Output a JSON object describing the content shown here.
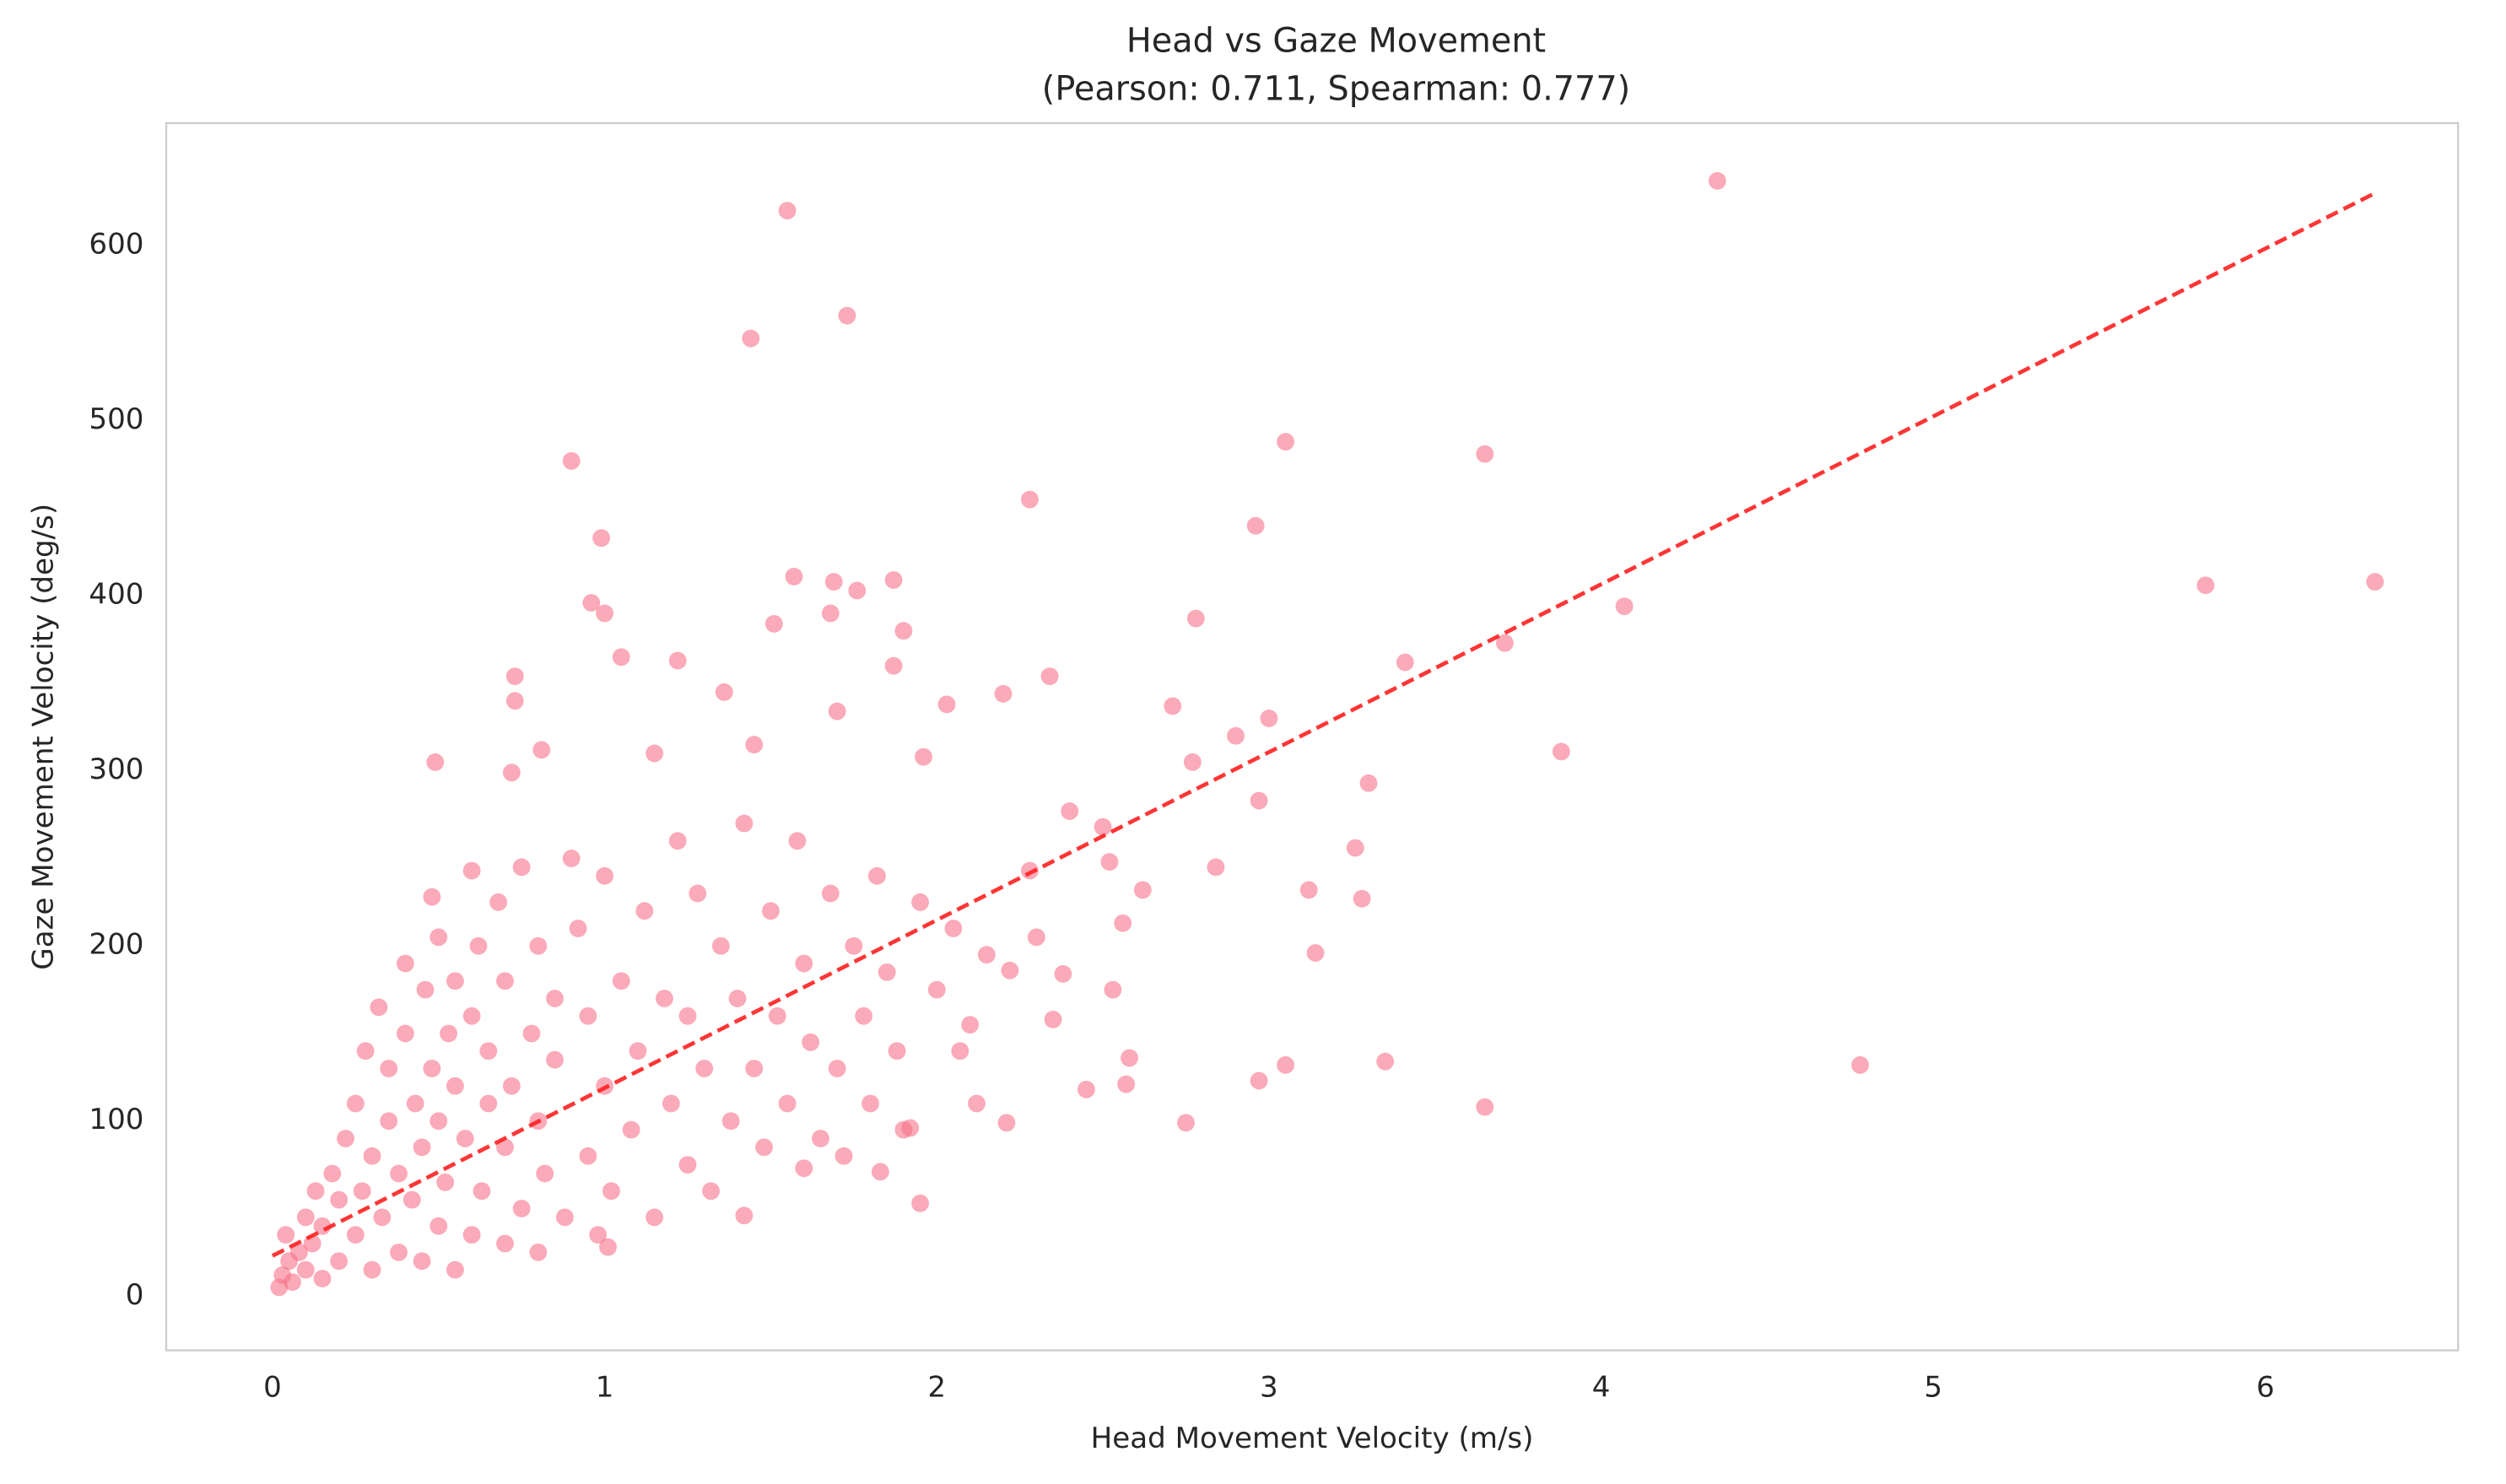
{
  "chart_data": {
    "type": "scatter",
    "title": "Head vs Gaze Movement",
    "subtitle": "(Pearson: 0.711, Spearman: 0.777)",
    "x_label": "Head Movement Velocity (m/s)",
    "y_label": "Gaze Movement Velocity (deg/s)",
    "color": "#f77189",
    "x": [
      4.35,
      1.55,
      1.73,
      1.44,
      0.9,
      3.05,
      3.65,
      2.28,
      2.96,
      0.99,
      5.82,
      6.33,
      4.07,
      3.71,
      3.41,
      3.88,
      3.3,
      3.0,
      2.97,
      2.78,
      2.9,
      2.84,
      2.77,
      2.71,
      2.62,
      3.12,
      3.14,
      3.26,
      3.28,
      3.35,
      3.65,
      4.78,
      3.05,
      2.97,
      2.75,
      2.57,
      2.56,
      2.5,
      2.52,
      2.58,
      2.45,
      2.53,
      2.38,
      2.4,
      2.34,
      2.2,
      2.28,
      2.22,
      2.21,
      2.03,
      1.96,
      1.9,
      1.87,
      1.87,
      1.76,
      1.69,
      1.68,
      1.57,
      1.51,
      1.36,
      1.22,
      0.96,
      1.0,
      1.05,
      0.73,
      0.73,
      0.72,
      0.49,
      0.81,
      1.45,
      1.7,
      1.95,
      1.42,
      1.01,
      1.6,
      1.83,
      1.9,
      2.07,
      2.12,
      0.02,
      0.03,
      0.05,
      0.04,
      0.06,
      0.08,
      0.1,
      0.1,
      0.12,
      0.13,
      0.15,
      0.15,
      0.18,
      0.2,
      0.2,
      0.22,
      0.25,
      0.25,
      0.27,
      0.28,
      0.3,
      0.3,
      0.32,
      0.33,
      0.35,
      0.35,
      0.38,
      0.38,
      0.4,
      0.4,
      0.42,
      0.43,
      0.45,
      0.45,
      0.46,
      0.48,
      0.48,
      0.5,
      0.5,
      0.5,
      0.52,
      0.53,
      0.55,
      0.55,
      0.55,
      0.58,
      0.6,
      0.6,
      0.6,
      0.62,
      0.63,
      0.65,
      0.65,
      0.68,
      0.7,
      0.7,
      0.7,
      0.72,
      0.75,
      0.75,
      0.78,
      0.8,
      0.8,
      0.8,
      0.82,
      0.85,
      0.85,
      0.88,
      0.9,
      0.92,
      0.95,
      0.95,
      0.98,
      1.0,
      1.0,
      1.02,
      1.05,
      1.08,
      1.1,
      1.12,
      1.15,
      1.15,
      1.18,
      1.2,
      1.22,
      1.25,
      1.25,
      1.28,
      1.3,
      1.32,
      1.35,
      1.38,
      1.4,
      1.42,
      1.45,
      1.48,
      1.5,
      1.52,
      1.55,
      1.58,
      1.6,
      1.62,
      1.65,
      1.68,
      1.7,
      1.72,
      1.75,
      1.78,
      1.8,
      1.82,
      1.85,
      1.88,
      1.92,
      1.95,
      2.0,
      2.05,
      2.1,
      2.15,
      2.3,
      2.35
    ],
    "values": [
      637,
      620,
      560,
      547,
      477,
      488,
      481,
      455,
      440,
      433,
      406,
      408,
      394,
      373,
      362,
      311,
      293,
      330,
      283,
      387,
      320,
      245,
      305,
      337,
      232,
      232,
      196,
      256,
      227,
      134,
      108,
      132,
      132,
      123,
      99,
      121,
      213,
      268,
      248,
      136,
      118,
      175,
      184,
      277,
      354,
      344,
      243,
      186,
      99,
      338,
      308,
      380,
      409,
      360,
      403,
      408,
      390,
      411,
      384,
      345,
      363,
      396,
      390,
      365,
      354,
      340,
      299,
      305,
      312,
      315,
      334,
      53,
      46,
      28,
      73,
      71,
      95,
      140,
      110,
      5,
      12,
      20,
      35,
      8,
      25,
      45,
      15,
      30,
      60,
      10,
      40,
      70,
      20,
      55,
      90,
      35,
      110,
      60,
      140,
      15,
      80,
      165,
      45,
      100,
      130,
      25,
      70,
      150,
      190,
      55,
      110,
      20,
      85,
      175,
      130,
      228,
      40,
      100,
      205,
      65,
      150,
      15,
      120,
      180,
      90,
      35,
      160,
      243,
      200,
      60,
      110,
      140,
      225,
      30,
      85,
      180,
      120,
      50,
      245,
      150,
      25,
      100,
      200,
      70,
      135,
      170,
      45,
      250,
      210,
      80,
      160,
      35,
      240,
      120,
      60,
      180,
      95,
      140,
      220,
      45,
      310,
      170,
      110,
      260,
      75,
      160,
      230,
      130,
      60,
      200,
      100,
      170,
      270,
      130,
      85,
      220,
      160,
      110,
      260,
      190,
      145,
      90,
      230,
      130,
      80,
      200,
      160,
      110,
      240,
      185,
      140,
      96,
      225,
      175,
      210,
      155,
      195,
      205,
      158
    ],
    "fit": {
      "x": [
        0,
        6.33
      ],
      "y": [
        23,
        630
      ],
      "color": "#ff2020"
    },
    "xlim": [
      -0.32,
      6.58
    ],
    "ylim": [
      -31,
      670
    ],
    "xticks": [
      0,
      1,
      2,
      3,
      4,
      5,
      6
    ],
    "yticks": [
      0,
      100,
      200,
      300,
      400,
      500,
      600
    ],
    "grid": false
  }
}
